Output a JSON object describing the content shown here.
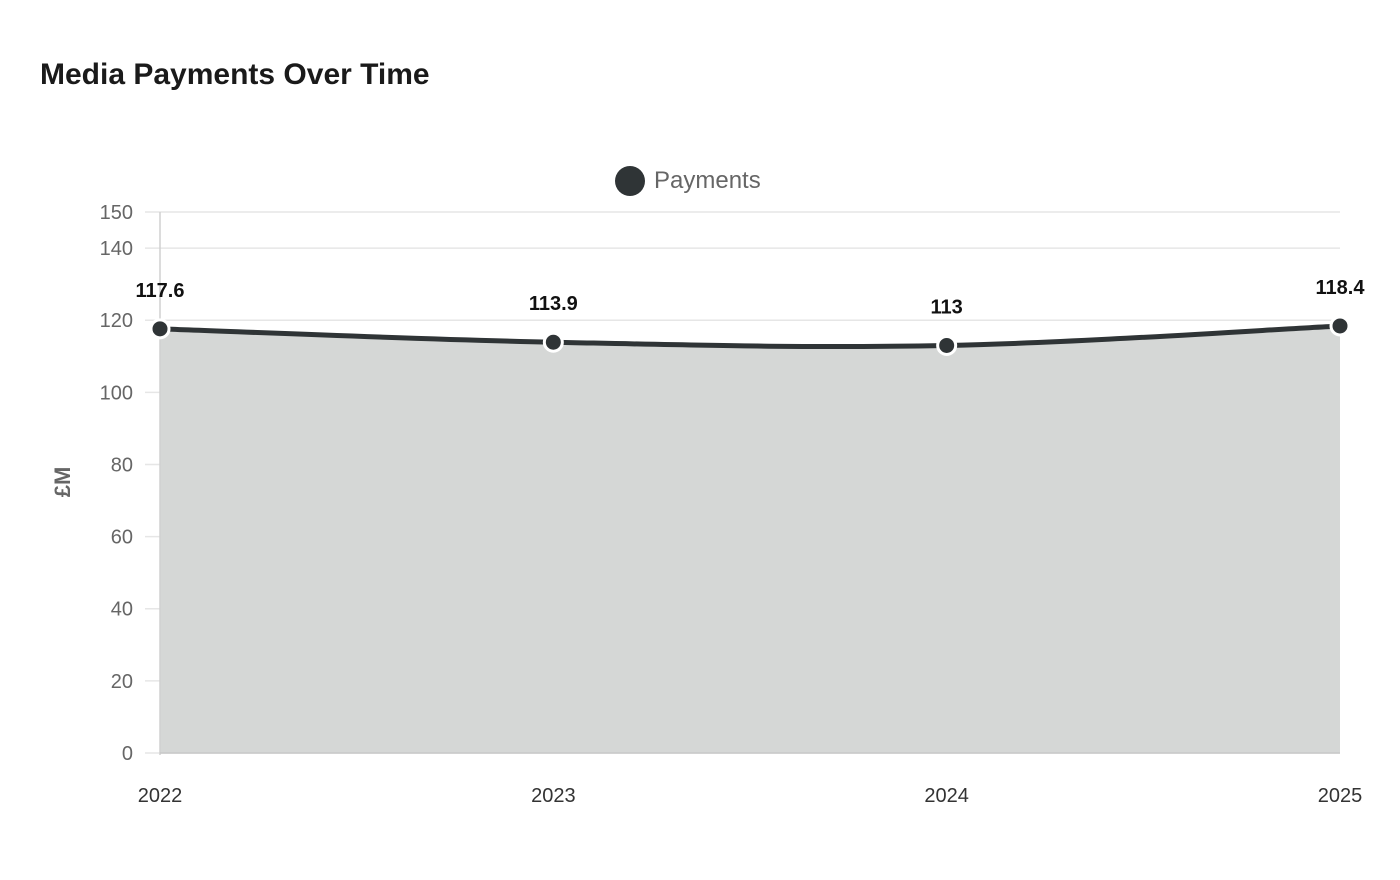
{
  "chart_data": {
    "type": "area",
    "title": "Media Payments Over Time",
    "xlabel": "",
    "ylabel": "£M",
    "categories": [
      "2022",
      "2023",
      "2024",
      "2025"
    ],
    "series": [
      {
        "name": "Payments",
        "values": [
          117.6,
          113.9,
          113,
          118.4
        ],
        "color": "#2f3436",
        "fill": "#d5d7d6"
      }
    ],
    "data_labels": [
      "117.6",
      "113.9",
      "113",
      "118.4"
    ],
    "yticks": [
      0,
      20,
      40,
      60,
      80,
      100,
      120,
      140,
      150
    ],
    "ylim": [
      0,
      150
    ],
    "grid": true,
    "legend": "top-center"
  }
}
